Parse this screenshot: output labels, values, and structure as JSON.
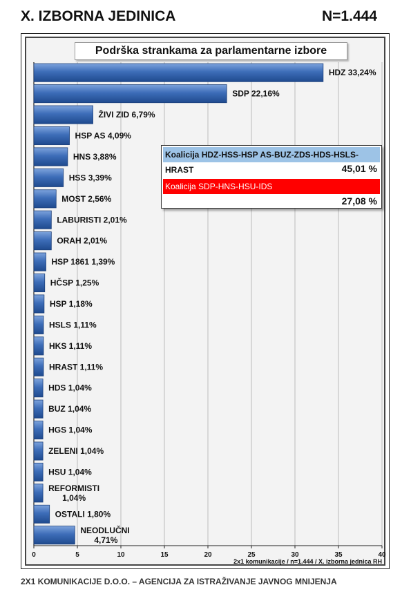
{
  "header": {
    "title": "X. IZBORNA JEDINICA",
    "sample": "N=1.444"
  },
  "colors": {
    "bar": "#2e5fa8",
    "bar_light": "#6c95d4",
    "coalition1": "#9dc3e6",
    "coalition2": "#ff0000"
  },
  "chart_data": {
    "type": "bar",
    "orientation": "horizontal",
    "title": "Podrška strankama za parlamentarne izbore",
    "categories": [
      "HDZ",
      "SDP",
      "ŽIVI ZID",
      "HSP AS",
      "HNS",
      "HSS",
      "MOST",
      "LABURISTI",
      "ORAH",
      "HSP 1861",
      "HČSP",
      "HSP",
      "HSLS",
      "HKS",
      "HRAST",
      "HDS",
      "BUZ",
      "HGS",
      "ZELENI",
      "HSU",
      "REFORMISTI",
      "OSTALI",
      "NEODLUČNI"
    ],
    "values": [
      33.24,
      22.16,
      6.79,
      4.09,
      3.88,
      3.39,
      2.56,
      2.01,
      2.01,
      1.39,
      1.25,
      1.18,
      1.11,
      1.11,
      1.11,
      1.04,
      1.04,
      1.04,
      1.04,
      1.04,
      1.04,
      1.8,
      4.71
    ],
    "labels": [
      "HDZ 33,24%",
      "SDP 22,16%",
      "ŽIVI ZID 6,79%",
      "HSP AS 4,09%",
      "HNS 3,88%",
      "HSS 3,39%",
      "MOST 2,56%",
      "LABURISTI 2,01%",
      "ORAH 2,01%",
      "HSP 1861 1,39%",
      "HČSP 1,25%",
      "HSP 1,18%",
      "HSLS 1,11%",
      "HKS 1,11%",
      "HRAST 1,11%",
      "HDS 1,04%",
      "BUZ 1,04%",
      "HGS 1,04%",
      "ZELENI 1,04%",
      "HSU 1,04%",
      "REFORMISTI\n1,04%",
      "OSTALI 1,80%",
      "NEODLUČNI\n4,71%"
    ],
    "xlim": [
      0,
      40
    ],
    "xticks": [
      0,
      5,
      10,
      15,
      20,
      25,
      30,
      35,
      40
    ],
    "grid": true,
    "unit": "%"
  },
  "coalitions": [
    {
      "name": "Koalicija HDZ-HSS-HSP AS-BUZ-ZDS-HDS-HSLS-HRAST",
      "value": "45,01 %"
    },
    {
      "name": "Koalicija SDP-HNS-HSU-IDS",
      "value": "27,08 %"
    }
  ],
  "footnote": "2x1 komunikacije / n=1.444 / X. izborna jednica RH",
  "company": "2X1 KOMUNIKACIJE D.O.O.  – AGENCIJA ZA ISTRAŽIVANJE JAVNOG MNIJENJA"
}
